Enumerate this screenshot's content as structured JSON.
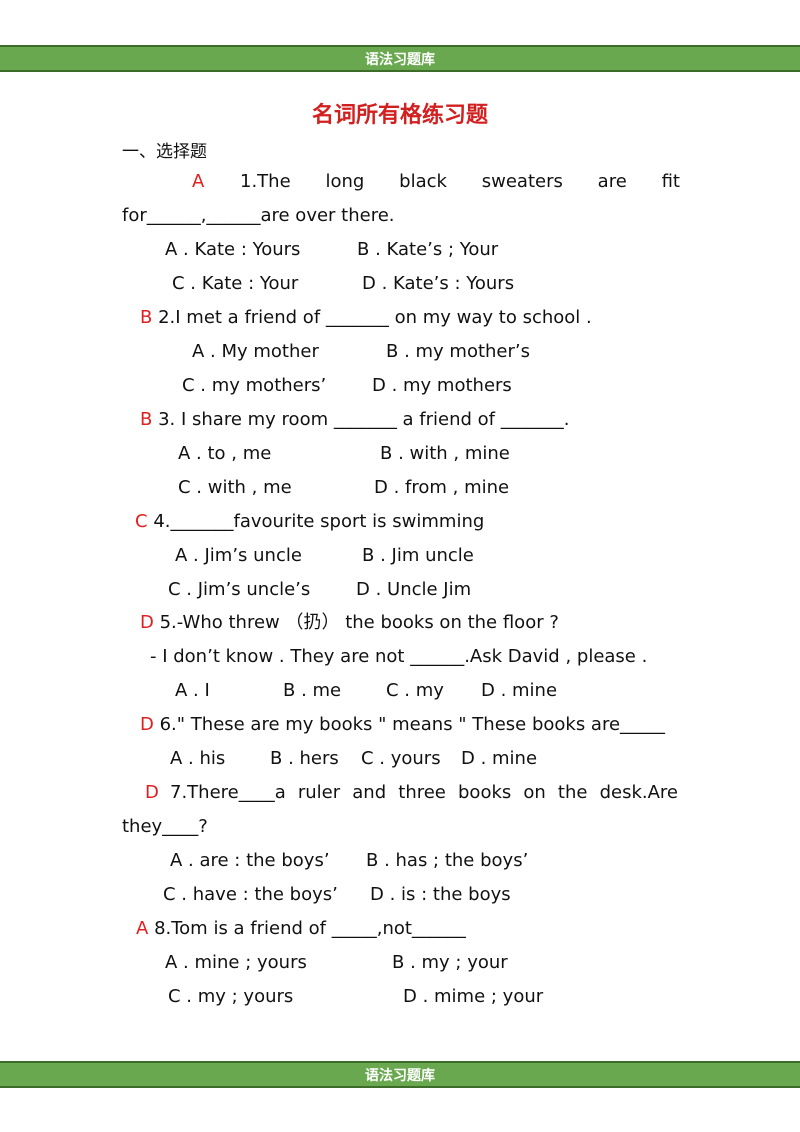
{
  "header": {
    "label": "语法习题库"
  },
  "footer": {
    "label": "语法习题库"
  },
  "title": "名词所有格练习题",
  "section": "一、选择题",
  "q1": {
    "answer": "A",
    "words": [
      "1.The",
      "long",
      "black",
      "sweaters",
      "are",
      "fit"
    ],
    "cont": "for______,______are over there.",
    "optA": "A . Kate : Yours",
    "optB": "B . Kate’s ; Your",
    "optC": "C . Kate : Your",
    "optD": "D . Kate’s : Yours"
  },
  "q2": {
    "answer": "B",
    "text": "2.I met a friend of _______ on my way to school .",
    "optA": "A . My mother",
    "optB": "B . my mother’s",
    "optC": "C . my mothers’",
    "optD": "D . my mothers"
  },
  "q3": {
    "answer": "B",
    "text": "3. I share my room _______ a friend of _______.",
    "optA": "A . to , me",
    "optB": "B . with , mine",
    "optC": "C . with , me",
    "optD": "D . from , mine"
  },
  "q4": {
    "answer": "C",
    "text": "4._______favourite sport is swimming",
    "optA": "A . Jim’s uncle",
    "optB": "B . Jim uncle",
    "optC": "C . Jim’s uncle’s",
    "optD": "D . Uncle Jim"
  },
  "q5": {
    "answer": "D",
    "text": "5.-Who threw （扔） the books on the floor ?",
    "text2": "- I don’t know . They are not ______.Ask David , please .",
    "optA": "A . I",
    "optB": "B . me",
    "optC": "C . my",
    "optD": "D . mine"
  },
  "q6": {
    "answer": "D",
    "text": "6.\" These are my books \" means \" These books are_____",
    "optA": "A . his",
    "optB": "B . hers",
    "optC": "C . yours",
    "optD": "D . mine"
  },
  "q7": {
    "answer": "D",
    "words": [
      "7.There____a",
      "ruler",
      "and",
      "three",
      "books",
      "on",
      "the",
      "desk.Are"
    ],
    "cont": "they____?",
    "optA": "A . are : the boys’",
    "optB": "B . has ; the boys’",
    "optC": "C . have : the boys’",
    "optD": "D . is : the boys"
  },
  "q8": {
    "answer": "A",
    "text": "8.Tom is a friend of _____,not______",
    "optA": "A . mine ; yours",
    "optB": "B . my ; your",
    "optC": "C . my ; yours",
    "optD": "D . mime ; your"
  }
}
